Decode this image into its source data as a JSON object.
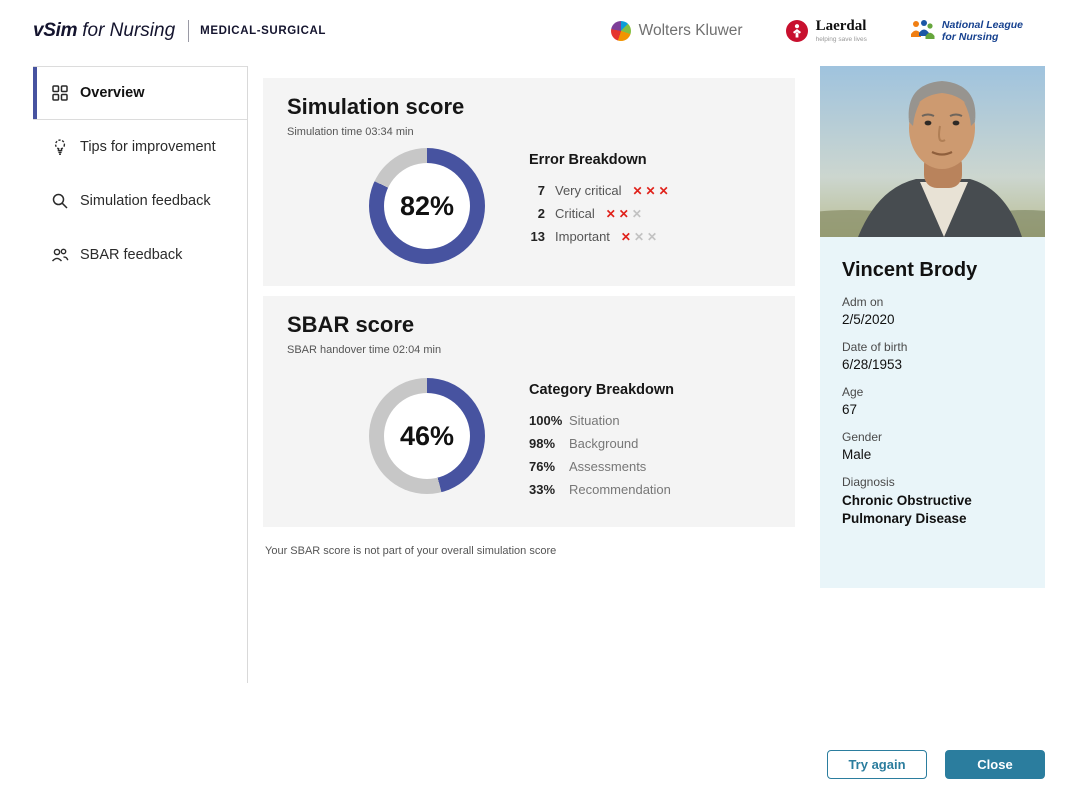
{
  "colors": {
    "donut_fill": "#4753a0",
    "donut_track": "#c7c7c7",
    "accent_teal": "#2b7d9e",
    "mark_red": "#e0211a",
    "mark_gray": "#c2c2c2",
    "active_indigo": "#4753a0",
    "patient_panel_bg": "#e9f5f9"
  },
  "header": {
    "brand": "vSim",
    "brand_suffix": "for Nursing",
    "division": "MEDICAL-SURGICAL",
    "brands": {
      "wolters_kluwer": "Wolters Kluwer",
      "laerdal": "Laerdal",
      "laerdal_tagline": "helping save lives",
      "nln_line1": "National League",
      "nln_line2": "for Nursing"
    }
  },
  "sidebar": {
    "items": [
      {
        "label": "Overview",
        "icon": "grid-icon",
        "active": true
      },
      {
        "label": "Tips for improvement",
        "icon": "lightbulb-icon",
        "active": false
      },
      {
        "label": "Simulation feedback",
        "icon": "search-icon",
        "active": false
      },
      {
        "label": "SBAR feedback",
        "icon": "people-icon",
        "active": false
      }
    ]
  },
  "simulation": {
    "title": "Simulation score",
    "subtitle": "Simulation time 03:34 min",
    "score_pct": 82,
    "score_label": "82%",
    "error_breakdown": {
      "title": "Error Breakdown",
      "rows": [
        {
          "count": "7",
          "label": "Very critical",
          "marks": [
            "red",
            "red",
            "red"
          ]
        },
        {
          "count": "2",
          "label": "Critical",
          "marks": [
            "red",
            "red",
            "gray"
          ]
        },
        {
          "count": "13",
          "label": "Important",
          "marks": [
            "red",
            "gray",
            "gray"
          ]
        }
      ]
    }
  },
  "sbar": {
    "title": "SBAR score",
    "subtitle": "SBAR handover time 02:04 min",
    "score_pct": 46,
    "score_label": "46%",
    "category_breakdown": {
      "title": "Category Breakdown",
      "rows": [
        {
          "pct": "100%",
          "label": "Situation"
        },
        {
          "pct": "98%",
          "label": "Background"
        },
        {
          "pct": "76%",
          "label": "Assessments"
        },
        {
          "pct": "33%",
          "label": "Recommendation"
        }
      ]
    }
  },
  "note": "Your SBAR score is not part of your overall simulation score",
  "patient": {
    "name": "Vincent Brody",
    "fields": [
      {
        "label": "Adm on",
        "value": "2/5/2020"
      },
      {
        "label": "Date of birth",
        "value": "6/28/1953"
      },
      {
        "label": "Age",
        "value": "67"
      },
      {
        "label": "Gender",
        "value": "Male"
      },
      {
        "label": "Diagnosis",
        "value": "Chronic Obstructive Pulmonary Disease"
      }
    ]
  },
  "buttons": {
    "try_again": "Try again",
    "close": "Close"
  },
  "chart_data": [
    {
      "type": "pie",
      "title": "Simulation score",
      "labels": [
        "score",
        "remainder"
      ],
      "values": [
        82,
        18
      ]
    },
    {
      "type": "pie",
      "title": "SBAR score",
      "labels": [
        "score",
        "remainder"
      ],
      "values": [
        46,
        54
      ]
    }
  ]
}
